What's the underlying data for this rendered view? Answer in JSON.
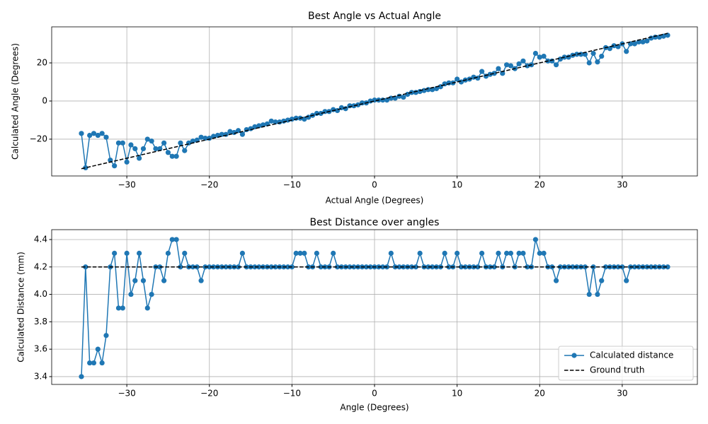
{
  "chart_data": [
    {
      "type": "line",
      "title": "Best Angle vs Actual Angle",
      "x_label": "Actual Angle (Degrees)",
      "y_label": "Calculated Angle (Degrees)",
      "x": [
        -35.5,
        -35,
        -34.5,
        -34,
        -33.5,
        -33,
        -32.5,
        -32,
        -31.5,
        -31,
        -30.5,
        -30,
        -29.5,
        -29,
        -28.5,
        -28,
        -27.5,
        -27,
        -26.5,
        -26,
        -25.5,
        -25,
        -24.5,
        -24,
        -23.5,
        -23,
        -22.5,
        -22,
        -21.5,
        -21,
        -20.5,
        -20,
        -19.5,
        -19,
        -18.5,
        -18,
        -17.5,
        -17,
        -16.5,
        -16,
        -15.5,
        -15,
        -14.5,
        -14,
        -13.5,
        -13,
        -12.5,
        -12,
        -11.5,
        -11,
        -10.5,
        -10,
        -9.5,
        -9,
        -8.5,
        -8,
        -7.5,
        -7,
        -6.5,
        -6,
        -5.5,
        -5,
        -4.5,
        -4,
        -3.5,
        -3,
        -2.5,
        -2,
        -1.5,
        -1,
        -0.5,
        0,
        0.5,
        1,
        1.5,
        2,
        2.5,
        3,
        3.5,
        4,
        4.5,
        5,
        5.5,
        6,
        6.5,
        7,
        7.5,
        8,
        8.5,
        9,
        9.5,
        10,
        10.5,
        11,
        11.5,
        12,
        12.5,
        13,
        13.5,
        14,
        14.5,
        15,
        15.5,
        16,
        16.5,
        17,
        17.5,
        18,
        18.5,
        19,
        19.5,
        20,
        20.5,
        21,
        21.5,
        22,
        22.5,
        23,
        23.5,
        24,
        24.5,
        25,
        25.5,
        26,
        26.5,
        27,
        27.5,
        28,
        28.5,
        29,
        29.5,
        30,
        30.5,
        31,
        31.5,
        32,
        32.5,
        33,
        33.5,
        34,
        34.5,
        35,
        35.5
      ],
      "series": [
        {
          "color": "#1f77b4",
          "marker": true,
          "values": [
            -17,
            -35,
            -18,
            -17,
            -18,
            -17,
            -19,
            -31,
            -34,
            -22,
            -22,
            -32,
            -23,
            -25,
            -30,
            -25,
            -20,
            -21,
            -25,
            -25,
            -22,
            -27,
            -29,
            -29,
            -22,
            -26,
            -22,
            -21,
            -20.5,
            -19,
            -19.5,
            -19.5,
            -18.5,
            -18,
            -17.5,
            -17.5,
            -16,
            -16.5,
            -15.5,
            -17.5,
            -15,
            -14.5,
            -13.5,
            -13,
            -12.5,
            -12,
            -10.5,
            -11,
            -11,
            -10.5,
            -10,
            -9.5,
            -9,
            -9,
            -9.5,
            -8.5,
            -7.5,
            -6.5,
            -6.5,
            -5.5,
            -5.5,
            -4.5,
            -5,
            -3.5,
            -4,
            -2.5,
            -2.5,
            -2,
            -1,
            -1,
            0,
            0.5,
            0.5,
            0.5,
            0.5,
            1.5,
            1.5,
            2.5,
            2,
            3.5,
            4.5,
            4.5,
            5,
            5.5,
            6,
            6,
            6.5,
            7.5,
            9,
            9.5,
            9.5,
            11.5,
            10,
            11,
            11.5,
            12.5,
            12,
            15.5,
            13,
            14,
            14.5,
            17,
            14.5,
            19,
            18.5,
            17,
            19.5,
            21,
            18.5,
            19,
            25,
            23,
            23.5,
            21,
            21,
            19,
            22,
            23,
            23,
            24,
            24.5,
            24.5,
            24.5,
            20,
            25,
            20.5,
            23.5,
            28,
            27.5,
            29,
            28.5,
            30,
            26,
            30,
            30,
            31,
            31,
            31.5,
            33,
            33.5,
            33.5,
            34,
            34.5
          ]
        },
        {
          "color": "#000000",
          "linestyle": "dashed",
          "x": [
            -35.5,
            35.5
          ],
          "values": [
            -35.5,
            35.5
          ]
        }
      ],
      "xlim": [
        -39.1,
        39.1
      ],
      "ylim": [
        -39.3,
        38.9
      ],
      "xticks": [
        {
          "value": -30,
          "label": "−30"
        },
        {
          "value": -20,
          "label": "−20"
        },
        {
          "value": -10,
          "label": "−10"
        },
        0,
        10,
        20,
        30
      ],
      "yticks": [
        {
          "value": -20,
          "label": "−20"
        },
        0,
        20
      ],
      "grid": true
    },
    {
      "type": "line",
      "title": "Best Distance over angles",
      "x_label": "Angle (Degrees)",
      "y_label": "Calculated Distance (mm)",
      "x": [
        -35.5,
        -35,
        -34.5,
        -34,
        -33.5,
        -33,
        -32.5,
        -32,
        -31.5,
        -31,
        -30.5,
        -30,
        -29.5,
        -29,
        -28.5,
        -28,
        -27.5,
        -27,
        -26.5,
        -26,
        -25.5,
        -25,
        -24.5,
        -24,
        -23.5,
        -23,
        -22.5,
        -22,
        -21.5,
        -21,
        -20.5,
        -20,
        -19.5,
        -19,
        -18.5,
        -18,
        -17.5,
        -17,
        -16.5,
        -16,
        -15.5,
        -15,
        -14.5,
        -14,
        -13.5,
        -13,
        -12.5,
        -12,
        -11.5,
        -11,
        -10.5,
        -10,
        -9.5,
        -9,
        -8.5,
        -8,
        -7.5,
        -7,
        -6.5,
        -6,
        -5.5,
        -5,
        -4.5,
        -4,
        -3.5,
        -3,
        -2.5,
        -2,
        -1.5,
        -1,
        -0.5,
        0,
        0.5,
        1,
        1.5,
        2,
        2.5,
        3,
        3.5,
        4,
        4.5,
        5,
        5.5,
        6,
        6.5,
        7,
        7.5,
        8,
        8.5,
        9,
        9.5,
        10,
        10.5,
        11,
        11.5,
        12,
        12.5,
        13,
        13.5,
        14,
        14.5,
        15,
        15.5,
        16,
        16.5,
        17,
        17.5,
        18,
        18.5,
        19,
        19.5,
        20,
        20.5,
        21,
        21.5,
        22,
        22.5,
        23,
        23.5,
        24,
        24.5,
        25,
        25.5,
        26,
        26.5,
        27,
        27.5,
        28,
        28.5,
        29,
        29.5,
        30,
        30.5,
        31,
        31.5,
        32,
        32.5,
        33,
        33.5,
        34,
        34.5,
        35,
        35.5
      ],
      "series": [
        {
          "name": "Calculated distance",
          "color": "#1f77b4",
          "marker": true,
          "values": [
            3.4,
            4.2,
            3.5,
            3.5,
            3.6,
            3.5,
            3.7,
            4.2,
            4.3,
            3.9,
            3.9,
            4.3,
            4.0,
            4.1,
            4.3,
            4.1,
            3.9,
            4.0,
            4.2,
            4.2,
            4.1,
            4.3,
            4.4,
            4.4,
            4.2,
            4.3,
            4.2,
            4.2,
            4.2,
            4.1,
            4.2,
            4.2,
            4.2,
            4.2,
            4.2,
            4.2,
            4.2,
            4.2,
            4.2,
            4.3,
            4.2,
            4.2,
            4.2,
            4.2,
            4.2,
            4.2,
            4.2,
            4.2,
            4.2,
            4.2,
            4.2,
            4.2,
            4.3,
            4.3,
            4.3,
            4.2,
            4.2,
            4.3,
            4.2,
            4.2,
            4.2,
            4.3,
            4.2,
            4.2,
            4.2,
            4.2,
            4.2,
            4.2,
            4.2,
            4.2,
            4.2,
            4.2,
            4.2,
            4.2,
            4.2,
            4.3,
            4.2,
            4.2,
            4.2,
            4.2,
            4.2,
            4.2,
            4.3,
            4.2,
            4.2,
            4.2,
            4.2,
            4.2,
            4.3,
            4.2,
            4.2,
            4.3,
            4.2,
            4.2,
            4.2,
            4.2,
            4.2,
            4.3,
            4.2,
            4.2,
            4.2,
            4.3,
            4.2,
            4.3,
            4.3,
            4.2,
            4.3,
            4.3,
            4.2,
            4.2,
            4.4,
            4.3,
            4.3,
            4.2,
            4.2,
            4.1,
            4.2,
            4.2,
            4.2,
            4.2,
            4.2,
            4.2,
            4.2,
            4.0,
            4.2,
            4.0,
            4.1,
            4.2,
            4.2,
            4.2,
            4.2,
            4.2,
            4.1,
            4.2,
            4.2,
            4.2,
            4.2,
            4.2,
            4.2,
            4.2,
            4.2,
            4.2,
            4.2
          ]
        },
        {
          "name": "Ground truth",
          "color": "#000000",
          "linestyle": "dashed",
          "x": [
            -35.5,
            35.5
          ],
          "values": [
            4.2,
            4.2
          ]
        }
      ],
      "xlim": [
        -39.1,
        39.1
      ],
      "ylim": [
        3.343,
        4.472
      ],
      "xticks": [
        {
          "value": -30,
          "label": "−30"
        },
        {
          "value": -20,
          "label": "−20"
        },
        {
          "value": -10,
          "label": "−10"
        },
        0,
        10,
        20,
        30
      ],
      "yticks": [
        3.4,
        3.6,
        3.8,
        {
          "value": 4,
          "label": "4.0"
        },
        4.2,
        4.4
      ],
      "grid": true,
      "legend": "lower right"
    }
  ]
}
